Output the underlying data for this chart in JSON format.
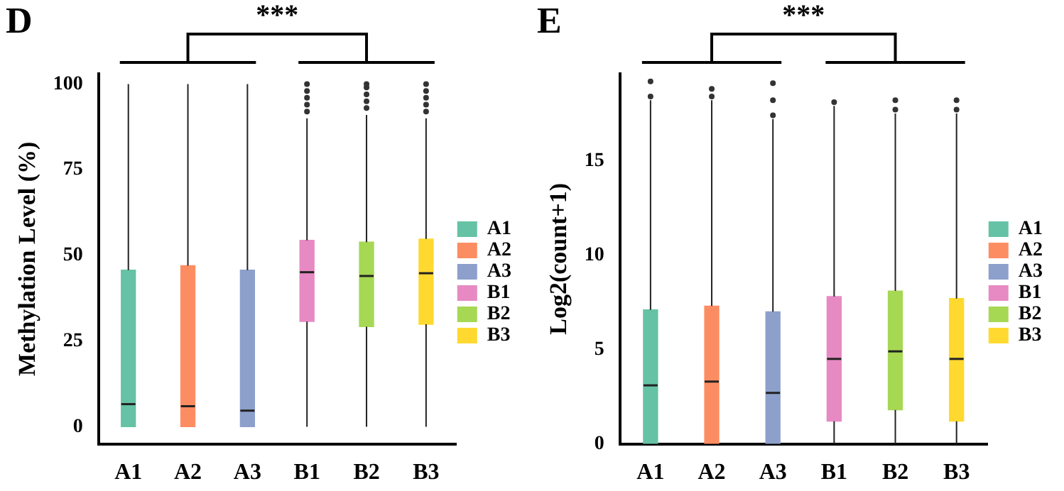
{
  "chart_data": [
    {
      "type": "box",
      "title": "D",
      "ylabel": "Methylation Level (%)",
      "categories": [
        "A1",
        "A2",
        "A3",
        "B1",
        "B2",
        "B3"
      ],
      "legend": "right",
      "ylim": [
        -5,
        103
      ],
      "yticks": [
        0,
        25,
        50,
        75,
        100
      ],
      "annotations": [
        "***"
      ],
      "series": [
        {
          "name": "A1",
          "color": "#66c2a5",
          "x": [
            "A1"
          ],
          "boxes": [
            {
              "low": 0,
              "q1": 0,
              "median": 6.6,
              "q3": 45.7,
              "high": 100
            }
          ]
        },
        {
          "name": "A2",
          "color": "#fc8d62",
          "x": [
            "A2"
          ],
          "boxes": [
            {
              "low": 0,
              "q1": 0,
              "median": 6,
              "q3": 47,
              "high": 100
            }
          ]
        },
        {
          "name": "A3",
          "color": "#8da0cb",
          "x": [
            "A3"
          ],
          "boxes": [
            {
              "low": 0,
              "q1": 0,
              "median": 4.7,
              "q3": 45.7,
              "high": 100
            }
          ]
        },
        {
          "name": "B1",
          "color": "#e78ac3",
          "x": [
            "B1"
          ],
          "boxes": [
            {
              "low": 0,
              "q1": 30.7,
              "median": 45.1,
              "q3": 54.4,
              "high": 90,
              "outliers": [
                92,
                94,
                96,
                98,
                100
              ]
            }
          ]
        },
        {
          "name": "B2",
          "color": "#a6d854",
          "x": [
            "B2"
          ],
          "boxes": [
            {
              "low": 0,
              "q1": 29.2,
              "median": 44,
              "q3": 53.9,
              "high": 91,
              "outliers": [
                93,
                95,
                97,
                99,
                100
              ]
            }
          ]
        },
        {
          "name": "B3",
          "color": "#ffd92f",
          "x": [
            "B3"
          ],
          "boxes": [
            {
              "low": 0,
              "q1": 29.9,
              "median": 44.8,
              "q3": 54.8,
              "high": 90,
              "outliers": [
                92,
                94,
                96,
                98,
                100
              ]
            }
          ]
        }
      ]
    },
    {
      "type": "box",
      "title": "E",
      "ylabel": "Log2(count+1)",
      "categories": [
        "A1",
        "A2",
        "A3",
        "B1",
        "B2",
        "B3"
      ],
      "legend": "right",
      "ylim": [
        0,
        19.6
      ],
      "yticks": [
        0,
        5,
        10,
        15
      ],
      "annotations": [
        "***"
      ],
      "series": [
        {
          "name": "A1",
          "color": "#66c2a5",
          "x": [
            "A1"
          ],
          "boxes": [
            {
              "low": 0,
              "q1": 0,
              "median": 3.1,
              "q3": 7.1,
              "high": 18.2,
              "outliers": [
                18.4,
                19.2
              ]
            }
          ]
        },
        {
          "name": "A2",
          "color": "#fc8d62",
          "x": [
            "A2"
          ],
          "boxes": [
            {
              "low": 0,
              "q1": 0,
              "median": 3.3,
              "q3": 7.3,
              "high": 18.2,
              "outliers": [
                18.4,
                18.8
              ]
            }
          ]
        },
        {
          "name": "A3",
          "color": "#8da0cb",
          "x": [
            "A3"
          ],
          "boxes": [
            {
              "low": 0,
              "q1": 0,
              "median": 2.7,
              "q3": 7,
              "high": 17.2,
              "outliers": [
                17.4,
                18.2,
                19.1
              ]
            }
          ]
        },
        {
          "name": "B1",
          "color": "#e78ac3",
          "x": [
            "B1"
          ],
          "boxes": [
            {
              "low": 0,
              "q1": 1.2,
              "median": 4.5,
              "q3": 7.8,
              "high": 17.9,
              "outliers": [
                18.1
              ]
            }
          ]
        },
        {
          "name": "B2",
          "color": "#a6d854",
          "x": [
            "B2"
          ],
          "boxes": [
            {
              "low": 0,
              "q1": 1.8,
              "median": 4.9,
              "q3": 8.1,
              "high": 17.5,
              "outliers": [
                17.7,
                18.2
              ]
            }
          ]
        },
        {
          "name": "B3",
          "color": "#ffd92f",
          "x": [
            "B3"
          ],
          "boxes": [
            {
              "low": 0,
              "q1": 1.2,
              "median": 4.5,
              "q3": 7.7,
              "high": 17.5,
              "outliers": [
                17.7,
                18.2
              ]
            }
          ]
        }
      ]
    }
  ]
}
